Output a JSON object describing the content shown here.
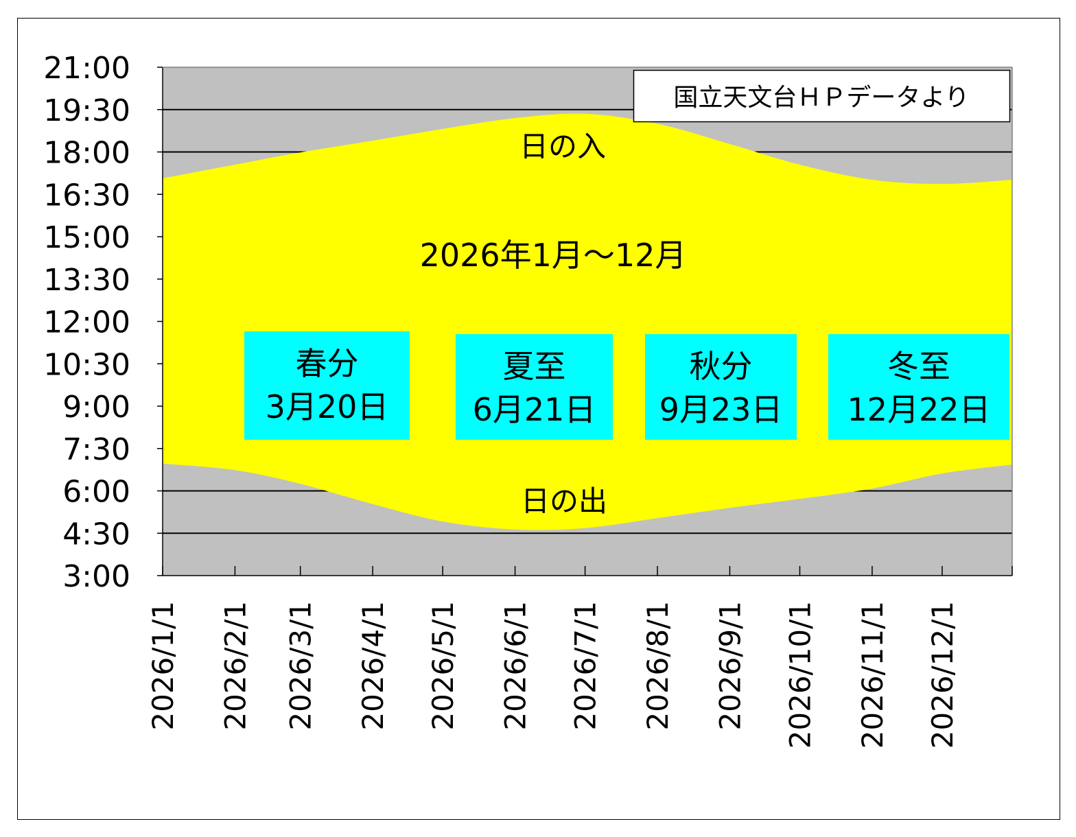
{
  "chart_data": {
    "type": "area",
    "title": "2026年1月～12月",
    "source_note": "国立天文台ＨＰデータより",
    "xlabel": "",
    "ylabel": "",
    "x_ticks": [
      "2026/1/1",
      "2026/2/1",
      "2026/3/1",
      "2026/4/1",
      "2026/5/1",
      "2026/6/1",
      "2026/7/1",
      "2026/8/1",
      "2026/9/1",
      "2026/10/1",
      "2026/11/1",
      "2026/12/1"
    ],
    "y_ticks": [
      "21:00",
      "19:30",
      "18:00",
      "16:30",
      "15:00",
      "13:30",
      "12:00",
      "10:30",
      "9:00",
      "7:30",
      "6:00",
      "4:30",
      "3:00"
    ],
    "ylim": [
      "3:00",
      "21:00"
    ],
    "xlim": [
      "2026/1/1",
      "2026/12/31"
    ],
    "gridlines": [
      "19:30",
      "18:00",
      "6:00",
      "4:30"
    ],
    "x": [
      "2026/1/1",
      "2026/2/1",
      "2026/3/1",
      "2026/4/1",
      "2026/5/1",
      "2026/6/1",
      "2026/7/1",
      "2026/8/1",
      "2026/9/1",
      "2026/10/1",
      "2026/11/1",
      "2026/12/1",
      "2026/12/31"
    ],
    "series": [
      {
        "name": "日の入",
        "values": [
          "17:04",
          "17:33",
          "17:59",
          "18:24",
          "18:49",
          "19:12",
          "19:21",
          "19:00",
          "18:17",
          "17:33",
          "17:01",
          "16:52",
          "17:01"
        ]
      },
      {
        "name": "日の出",
        "values": [
          "6:58",
          "6:44",
          "6:15",
          "5:32",
          "4:55",
          "4:38",
          "4:41",
          "5:02",
          "5:24",
          "5:43",
          "6:05",
          "6:37",
          "6:56"
        ]
      }
    ],
    "annotations": [
      {
        "title": "春分",
        "date": "3月20日"
      },
      {
        "title": "夏至",
        "date": "6月21日"
      },
      {
        "title": "秋分",
        "date": "9月23日"
      },
      {
        "title": "冬至",
        "date": "12月22日"
      }
    ],
    "colors": {
      "daylight": "#ffff00",
      "night": "#c0c0c0",
      "annotation_box": "#00ffff",
      "grid": "#000000"
    }
  }
}
